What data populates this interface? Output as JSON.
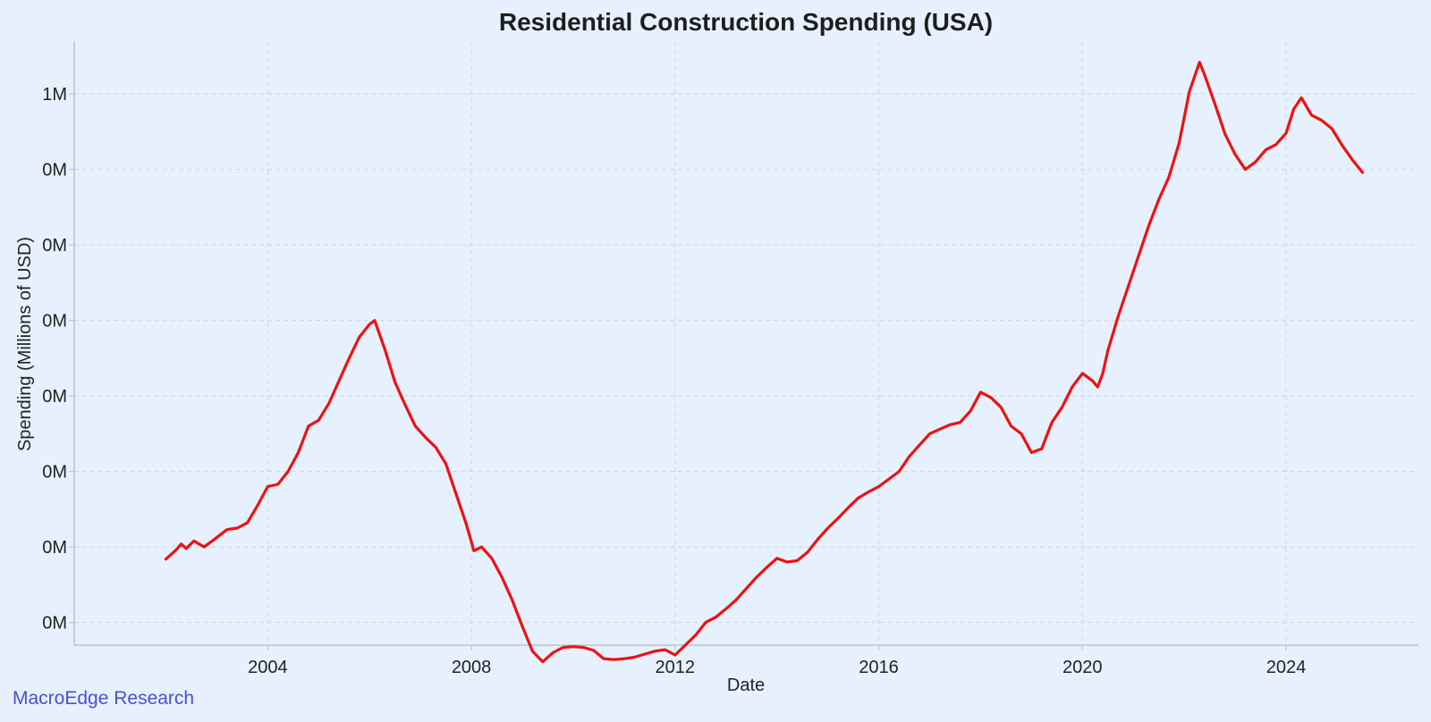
{
  "chart_data": {
    "type": "line",
    "title": "Residential Construction Spending (USA)",
    "xlabel": "Date",
    "ylabel": "Spending (Millions of USD)",
    "x_range": [
      2000.2,
      2026.6
    ],
    "y_range": [
      0.27,
      1.07
    ],
    "x_ticks": [
      2004,
      2008,
      2012,
      2016,
      2020,
      2024
    ],
    "x_tick_labels": [
      "2004",
      "2008",
      "2012",
      "2016",
      "2020",
      "2024"
    ],
    "y_ticks": [
      0.3,
      0.4,
      0.5,
      0.6,
      0.7,
      0.8,
      0.9,
      1.0
    ],
    "y_tick_labels": [
      "0M",
      "0M",
      "0M",
      "0M",
      "0M",
      "0M",
      "0M",
      "1M"
    ],
    "grid": true,
    "colors": {
      "line": "#ee1111",
      "background": "#e6f1fd",
      "watermark": "#4a4fcf"
    },
    "series": [
      {
        "name": "Residential Construction Spending",
        "x": [
          2002.0,
          2002.1,
          2002.2,
          2002.3,
          2002.4,
          2002.55,
          2002.75,
          2002.95,
          2003.2,
          2003.4,
          2003.6,
          2003.8,
          2004.0,
          2004.2,
          2004.4,
          2004.6,
          2004.8,
          2005.0,
          2005.2,
          2005.4,
          2005.6,
          2005.8,
          2006.0,
          2006.1,
          2006.3,
          2006.5,
          2006.7,
          2006.9,
          2007.1,
          2007.3,
          2007.5,
          2007.7,
          2007.9,
          2008.05,
          2008.2,
          2008.4,
          2008.6,
          2008.8,
          2009.0,
          2009.2,
          2009.4,
          2009.6,
          2009.8,
          2010.0,
          2010.2,
          2010.4,
          2010.6,
          2010.8,
          2011.0,
          2011.2,
          2011.4,
          2011.6,
          2011.8,
          2012.0,
          2012.2,
          2012.4,
          2012.6,
          2012.8,
          2013.0,
          2013.2,
          2013.4,
          2013.6,
          2013.8,
          2014.0,
          2014.2,
          2014.4,
          2014.6,
          2014.8,
          2015.0,
          2015.2,
          2015.4,
          2015.6,
          2015.8,
          2016.0,
          2016.2,
          2016.4,
          2016.6,
          2016.8,
          2017.0,
          2017.2,
          2017.4,
          2017.6,
          2017.8,
          2018.0,
          2018.2,
          2018.4,
          2018.6,
          2018.8,
          2019.0,
          2019.2,
          2019.4,
          2019.6,
          2019.8,
          2020.0,
          2020.2,
          2020.3,
          2020.4,
          2020.5,
          2020.7,
          2020.9,
          2021.1,
          2021.3,
          2021.5,
          2021.7,
          2021.9,
          2022.1,
          2022.3,
          2022.4,
          2022.6,
          2022.8,
          2023.0,
          2023.2,
          2023.4,
          2023.6,
          2023.8,
          2024.0,
          2024.15,
          2024.3,
          2024.5,
          2024.7,
          2024.9,
          2025.1,
          2025.3,
          2025.5
        ],
        "values": [
          0.384,
          0.39,
          0.396,
          0.404,
          0.398,
          0.408,
          0.4,
          0.41,
          0.423,
          0.425,
          0.432,
          0.455,
          0.48,
          0.483,
          0.5,
          0.525,
          0.56,
          0.568,
          0.59,
          0.62,
          0.65,
          0.678,
          0.695,
          0.7,
          0.662,
          0.618,
          0.588,
          0.56,
          0.545,
          0.532,
          0.51,
          0.47,
          0.43,
          0.395,
          0.4,
          0.385,
          0.36,
          0.33,
          0.295,
          0.262,
          0.248,
          0.26,
          0.267,
          0.268,
          0.267,
          0.263,
          0.252,
          0.251,
          0.252,
          0.254,
          0.258,
          0.262,
          0.264,
          0.257,
          0.27,
          0.283,
          0.3,
          0.307,
          0.318,
          0.33,
          0.345,
          0.36,
          0.373,
          0.385,
          0.38,
          0.382,
          0.393,
          0.41,
          0.425,
          0.438,
          0.452,
          0.465,
          0.473,
          0.48,
          0.49,
          0.5,
          0.52,
          0.535,
          0.55,
          0.556,
          0.562,
          0.565,
          0.58,
          0.605,
          0.598,
          0.585,
          0.56,
          0.55,
          0.525,
          0.53,
          0.565,
          0.585,
          0.612,
          0.63,
          0.62,
          0.612,
          0.63,
          0.66,
          0.705,
          0.745,
          0.785,
          0.825,
          0.86,
          0.89,
          0.935,
          1.003,
          1.042,
          1.025,
          0.987,
          0.947,
          0.92,
          0.9,
          0.91,
          0.926,
          0.933,
          0.948,
          0.98,
          0.995,
          0.972,
          0.965,
          0.954,
          0.932,
          0.913,
          0.896
        ]
      }
    ]
  },
  "footer": {
    "watermark": "MacroEdge Research"
  }
}
